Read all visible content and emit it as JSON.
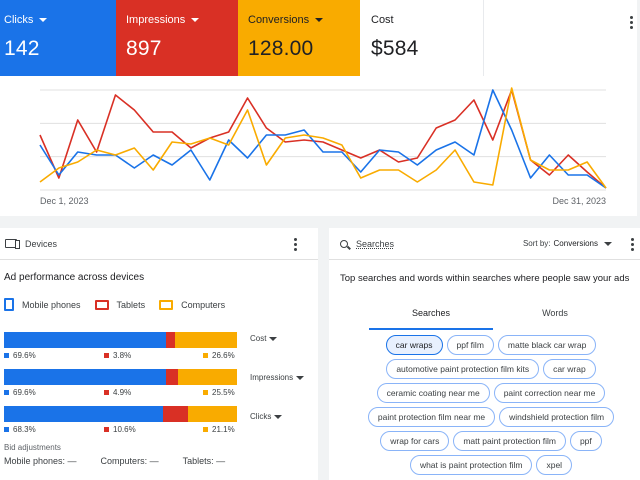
{
  "overview": {
    "tiles": {
      "clicks": {
        "label": "Clicks",
        "value": "142",
        "color": "#1a73e8"
      },
      "impressions": {
        "label": "Impressions",
        "value": "897",
        "color": "#d93025"
      },
      "conversions": {
        "label": "Conversions",
        "value": "128.00",
        "color": "#f9ab00"
      },
      "cost": {
        "label": "Cost",
        "value": "$584"
      }
    },
    "x_start": "Dec 1, 2023",
    "x_end": "Dec 31, 2023"
  },
  "chart_data": {
    "type": "line",
    "x": [
      1,
      2,
      3,
      4,
      5,
      6,
      7,
      8,
      9,
      10,
      11,
      12,
      13,
      14,
      15,
      16,
      17,
      18,
      19,
      20,
      21,
      22,
      23,
      24,
      25,
      26,
      27,
      28,
      29,
      30,
      31
    ],
    "x_start_label": "Dec 1, 2023",
    "x_end_label": "Dec 31, 2023",
    "ylim": [
      0,
      100
    ],
    "grid": true,
    "series": [
      {
        "color": "#d93025",
        "values": [
          55,
          12,
          70,
          38,
          95,
          80,
          58,
          58,
          42,
          52,
          58,
          92,
          62,
          48,
          50,
          48,
          40,
          32,
          40,
          28,
          32,
          62,
          70,
          90,
          50,
          100,
          30,
          15,
          35,
          18,
          2
        ]
      },
      {
        "color": "#1a73e8",
        "values": [
          45,
          15,
          38,
          35,
          35,
          22,
          35,
          25,
          40,
          10,
          50,
          32,
          55,
          55,
          60,
          38,
          38,
          18,
          40,
          38,
          25,
          40,
          48,
          35,
          100,
          60,
          12,
          35,
          15,
          15,
          2
        ]
      },
      {
        "color": "#f9ab00",
        "values": [
          8,
          22,
          28,
          40,
          35,
          42,
          20,
          48,
          46,
          52,
          45,
          80,
          25,
          52,
          55,
          52,
          45,
          12,
          20,
          20,
          8,
          20,
          40,
          8,
          5,
          102,
          30,
          20,
          20,
          28,
          2
        ]
      }
    ]
  },
  "devices": {
    "header": "Devices",
    "section_title": "Ad performance across devices",
    "legend": [
      {
        "label": "Mobile phones",
        "color": "#1a73e8"
      },
      {
        "label": "Tablets",
        "color": "#d93025"
      },
      {
        "label": "Computers",
        "color": "#f9ab00"
      }
    ],
    "rows": [
      {
        "metric": "Cost",
        "values": [
          69.6,
          3.8,
          26.6
        ],
        "labels": [
          "69.6%",
          "3.8%",
          "26.6%"
        ]
      },
      {
        "metric": "Impressions",
        "values": [
          69.6,
          4.9,
          25.5
        ],
        "labels": [
          "69.6%",
          "4.9%",
          "25.5%"
        ]
      },
      {
        "metric": "Clicks",
        "values": [
          68.3,
          10.6,
          21.1
        ],
        "labels": [
          "68.3%",
          "10.6%",
          "21.1%"
        ]
      }
    ],
    "bid_title": "Bid adjustments",
    "bid": {
      "mobile": "Mobile phones: —",
      "computers": "Computers: —",
      "tablets": "Tablets: —"
    }
  },
  "searches": {
    "header": "Searches",
    "sort_label": "Sort by:",
    "sort_value": "Conversions",
    "description": "Top searches and words within searches where people saw your ads",
    "tabs": [
      "Searches",
      "Words"
    ],
    "chips": [
      "car wraps",
      "ppf film",
      "matte black car wrap",
      "automotive paint protection film kits",
      "car wrap",
      "ceramic coating near me",
      "paint correction near me",
      "paint protection film near me",
      "windshield protection film",
      "wrap for cars",
      "matt paint protection film",
      "ppf",
      "what is paint protection film",
      "xpel"
    ]
  }
}
